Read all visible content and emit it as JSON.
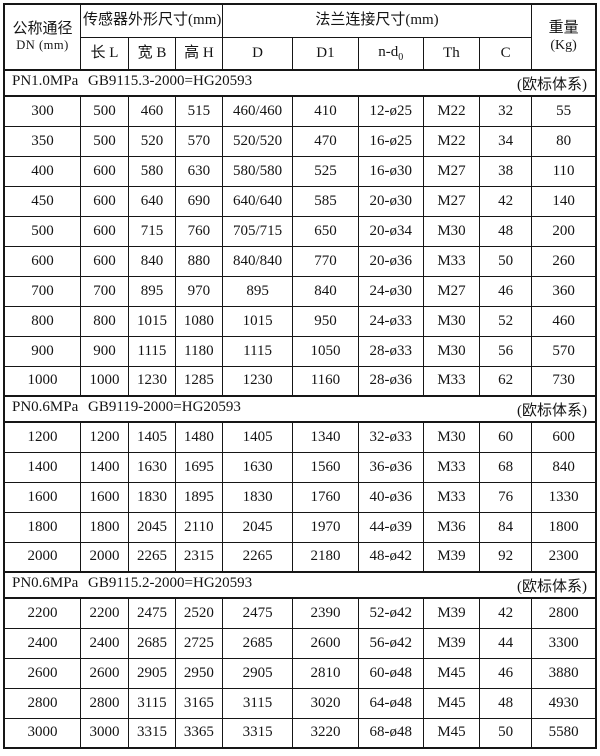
{
  "colors": {
    "border": "#161616",
    "text": "#141414",
    "background": "#ffffff"
  },
  "table": {
    "header": {
      "col_dn_line1": "公称通径",
      "col_dn_line2": "DN (mm)",
      "group_sensor": "传感器外形尺寸(mm)",
      "group_flange": "法兰连接尺寸(mm)",
      "col_weight_line1": "重量",
      "col_weight_line2": "(Kg)",
      "sub_len": "长 L",
      "sub_width": "宽 B",
      "sub_height": "高 H",
      "sub_d": "D",
      "sub_d1": "D1",
      "sub_nd0_base": "n-d",
      "sub_nd0_sub": "0",
      "sub_th": "Th",
      "sub_c": "C"
    },
    "sections": [
      {
        "pressure": "PN1.0MPa",
        "standard": "GB9115.3-2000=HG20593",
        "note": "(欧标体系)",
        "rows": [
          [
            "300",
            "500",
            "460",
            "515",
            "460/460",
            "410",
            "12-ø25",
            "M22",
            "32",
            "55"
          ],
          [
            "350",
            "500",
            "520",
            "570",
            "520/520",
            "470",
            "16-ø25",
            "M22",
            "34",
            "80"
          ],
          [
            "400",
            "600",
            "580",
            "630",
            "580/580",
            "525",
            "16-ø30",
            "M27",
            "38",
            "110"
          ],
          [
            "450",
            "600",
            "640",
            "690",
            "640/640",
            "585",
            "20-ø30",
            "M27",
            "42",
            "140"
          ],
          [
            "500",
            "600",
            "715",
            "760",
            "705/715",
            "650",
            "20-ø34",
            "M30",
            "48",
            "200"
          ],
          [
            "600",
            "600",
            "840",
            "880",
            "840/840",
            "770",
            "20-ø36",
            "M33",
            "50",
            "260"
          ],
          [
            "700",
            "700",
            "895",
            "970",
            "895",
            "840",
            "24-ø30",
            "M27",
            "46",
            "360"
          ],
          [
            "800",
            "800",
            "1015",
            "1080",
            "1015",
            "950",
            "24-ø33",
            "M30",
            "52",
            "460"
          ],
          [
            "900",
            "900",
            "1115",
            "1180",
            "1115",
            "1050",
            "28-ø33",
            "M30",
            "56",
            "570"
          ],
          [
            "1000",
            "1000",
            "1230",
            "1285",
            "1230",
            "1160",
            "28-ø36",
            "M33",
            "62",
            "730"
          ]
        ]
      },
      {
        "pressure": "PN0.6MPa",
        "standard": "GB9119-2000=HG20593",
        "note": "(欧标体系)",
        "rows": [
          [
            "1200",
            "1200",
            "1405",
            "1480",
            "1405",
            "1340",
            "32-ø33",
            "M30",
            "60",
            "600"
          ],
          [
            "1400",
            "1400",
            "1630",
            "1695",
            "1630",
            "1560",
            "36-ø36",
            "M33",
            "68",
            "840"
          ],
          [
            "1600",
            "1600",
            "1830",
            "1895",
            "1830",
            "1760",
            "40-ø36",
            "M33",
            "76",
            "1330"
          ],
          [
            "1800",
            "1800",
            "2045",
            "2110",
            "2045",
            "1970",
            "44-ø39",
            "M36",
            "84",
            "1800"
          ],
          [
            "2000",
            "2000",
            "2265",
            "2315",
            "2265",
            "2180",
            "48-ø42",
            "M39",
            "92",
            "2300"
          ]
        ]
      },
      {
        "pressure": "PN0.6MPa",
        "standard": "GB9115.2-2000=HG20593",
        "note": "(欧标体系)",
        "rows": [
          [
            "2200",
            "2200",
            "2475",
            "2520",
            "2475",
            "2390",
            "52-ø42",
            "M39",
            "42",
            "2800"
          ],
          [
            "2400",
            "2400",
            "2685",
            "2725",
            "2685",
            "2600",
            "56-ø42",
            "M39",
            "44",
            "3300"
          ],
          [
            "2600",
            "2600",
            "2905",
            "2950",
            "2905",
            "2810",
            "60-ø48",
            "M45",
            "46",
            "3880"
          ],
          [
            "2800",
            "2800",
            "3115",
            "3165",
            "3115",
            "3020",
            "64-ø48",
            "M45",
            "48",
            "4930"
          ],
          [
            "3000",
            "3000",
            "3315",
            "3365",
            "3315",
            "3220",
            "68-ø48",
            "M45",
            "50",
            "5580"
          ]
        ]
      }
    ]
  }
}
